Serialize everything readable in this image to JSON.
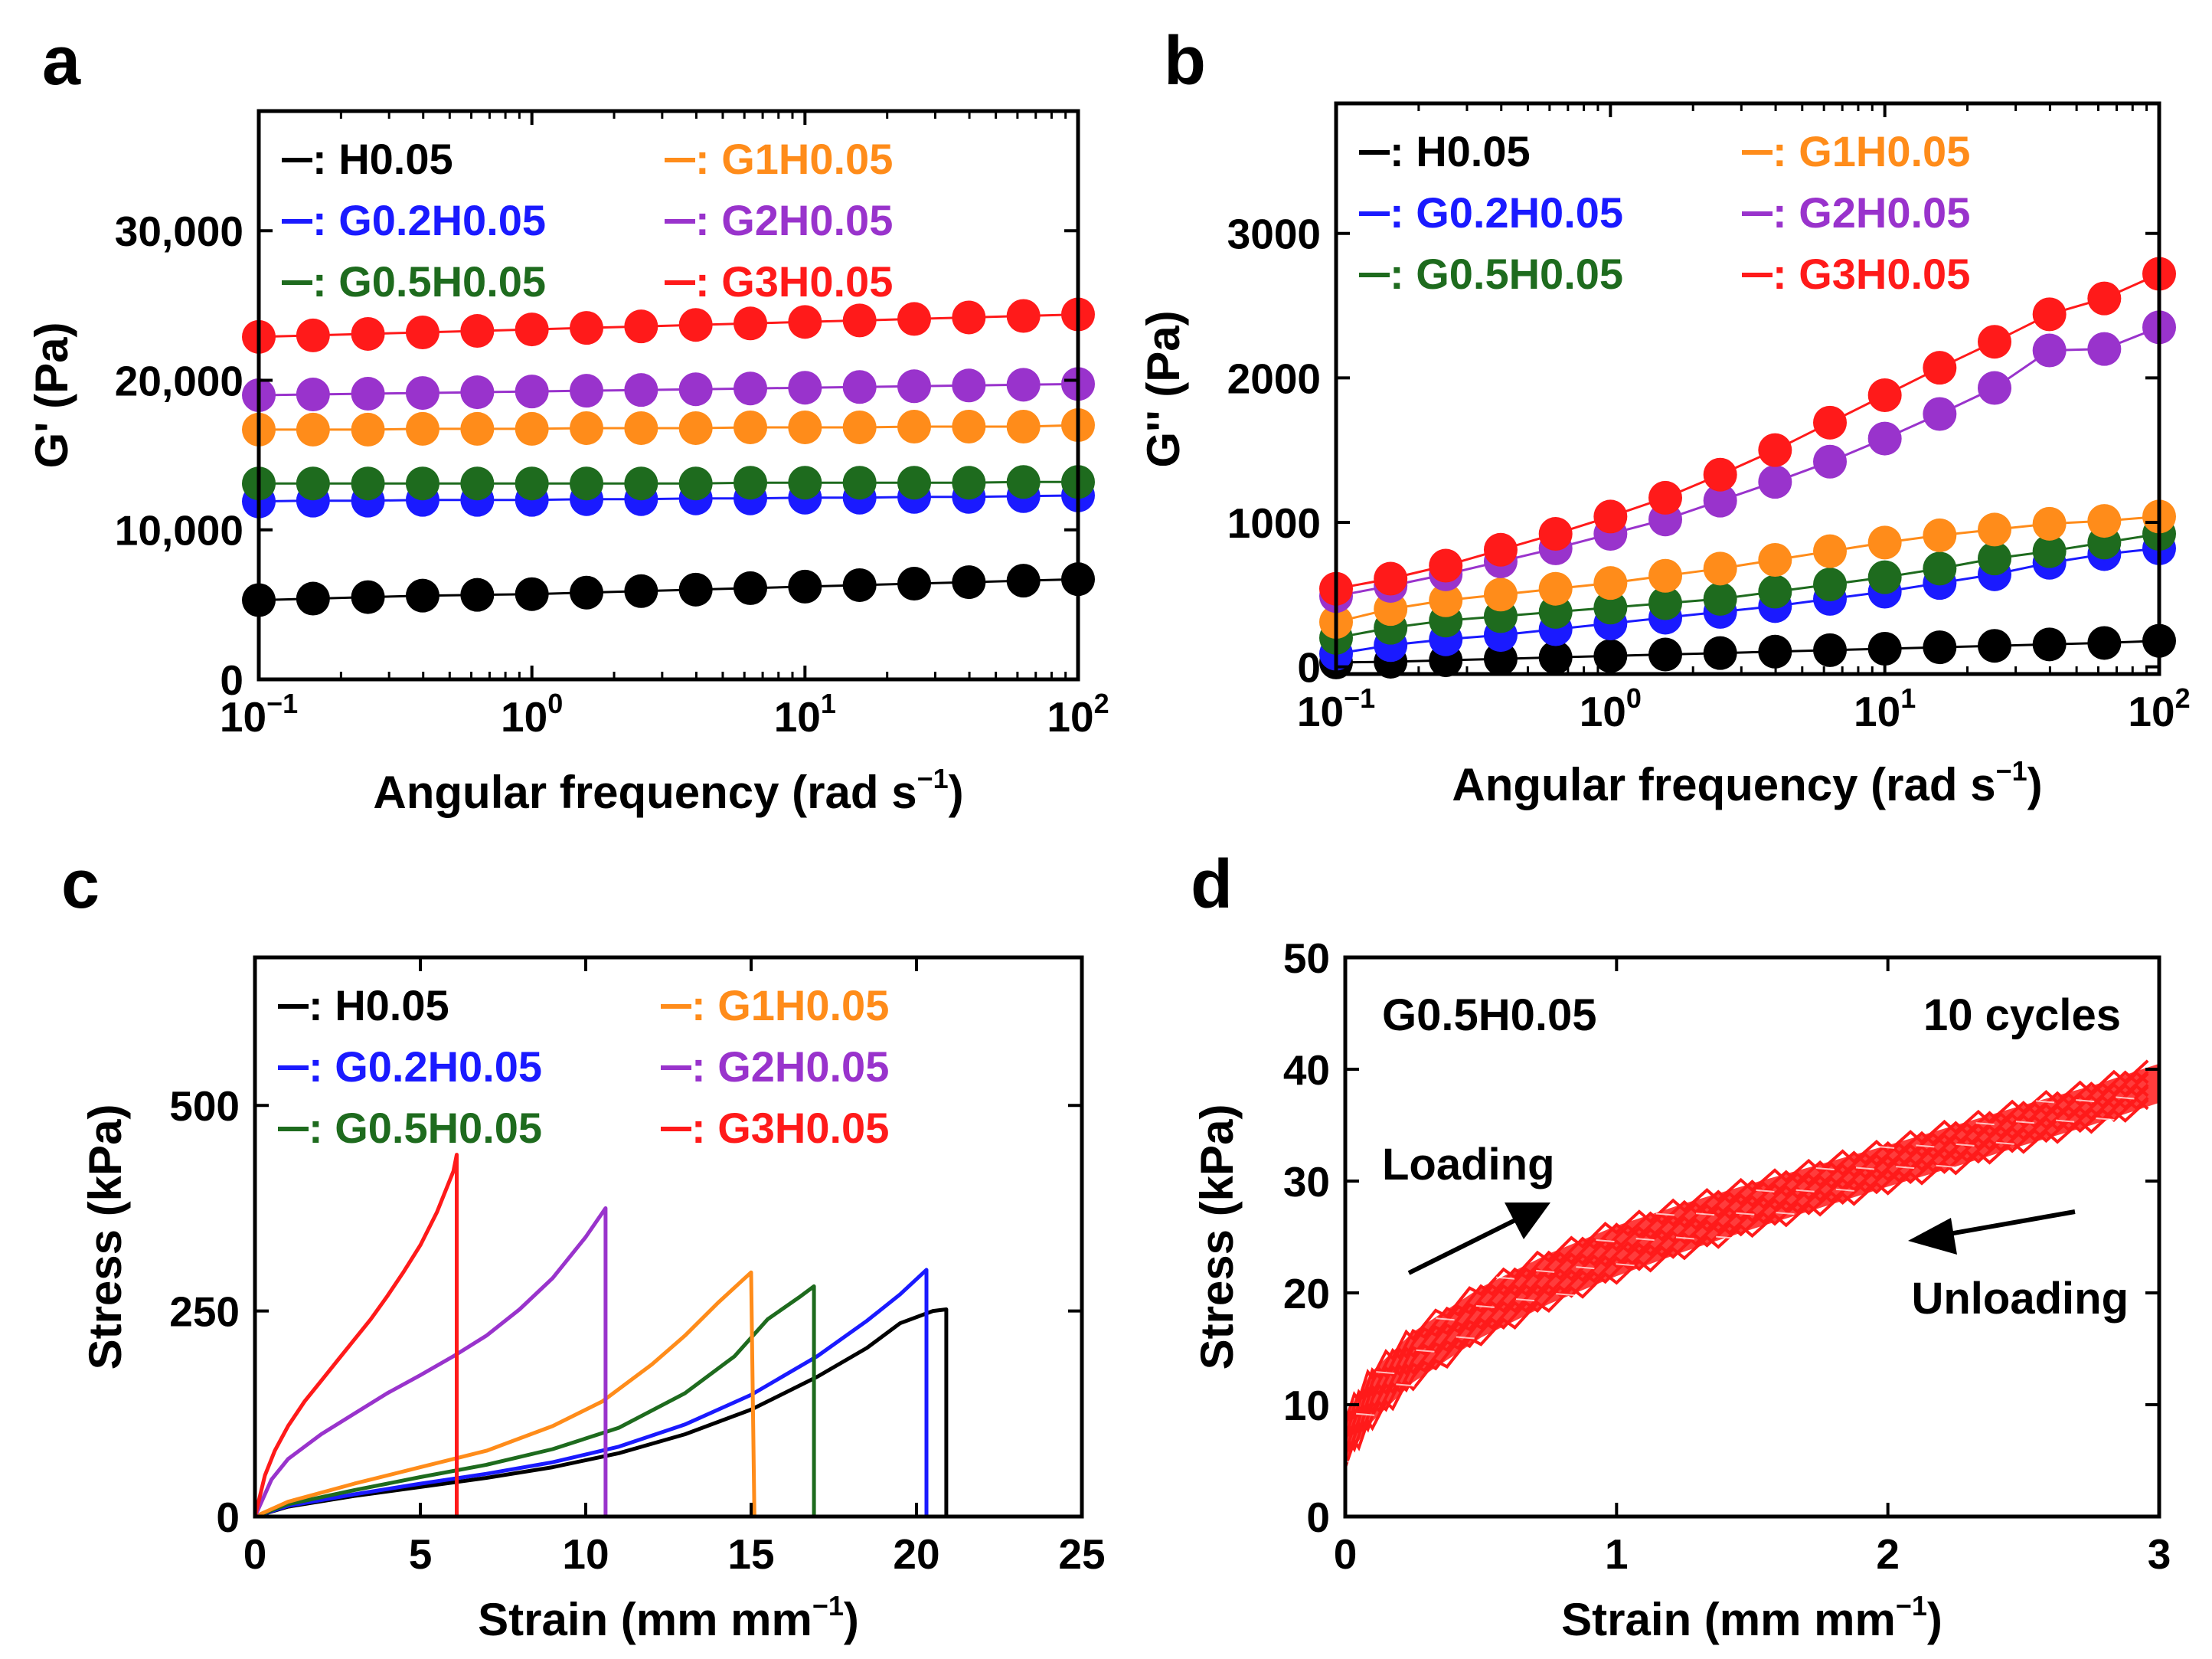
{
  "figure": {
    "panels": [
      {
        "letter": "a"
      },
      {
        "letter": "b"
      },
      {
        "letter": "c"
      },
      {
        "letter": "d"
      }
    ]
  },
  "legend_series": [
    {
      "name": ": H0.05",
      "color": "#000000"
    },
    {
      "name": ": G0.2H0.05",
      "color": "#1a1aff"
    },
    {
      "name": ": G0.5H0.05",
      "color": "#1e6b1e"
    },
    {
      "name": ": G1H0.05",
      "color": "#ff8c1a"
    },
    {
      "name": ": G2H0.05",
      "color": "#9933cc"
    },
    {
      "name": ": G3H0.05",
      "color": "#ff1a1a"
    }
  ],
  "chart_data": [
    {
      "panel": "a",
      "type": "scatter",
      "xscale": "log",
      "xlabel": "Angular frequency (rad s",
      "xlabel_sup": "−1",
      "xlabel_end": ")",
      "ylabel": "G' (Pa)",
      "xlim": [
        0.1,
        100
      ],
      "ylim": [
        0,
        38000
      ],
      "xticks": [
        0.1,
        1,
        10,
        100
      ],
      "xtick_labels": [
        {
          "base": "10",
          "exp": "−1"
        },
        {
          "base": "10",
          "exp": "0"
        },
        {
          "base": "10",
          "exp": "1"
        },
        {
          "base": "10",
          "exp": "2"
        }
      ],
      "yticks": [
        0,
        10000,
        20000,
        30000
      ],
      "ytick_labels": [
        "0",
        "10,000",
        "20,000",
        "30,000"
      ],
      "x": [
        0.1,
        0.158,
        0.251,
        0.398,
        0.631,
        1.0,
        1.585,
        2.512,
        3.981,
        6.31,
        10.0,
        15.85,
        25.12,
        39.81,
        63.1,
        100
      ],
      "series": [
        {
          "name": "H0.05",
          "values": [
            5300,
            5400,
            5500,
            5600,
            5650,
            5700,
            5800,
            5900,
            6000,
            6100,
            6200,
            6300,
            6400,
            6500,
            6600,
            6700
          ]
        },
        {
          "name": "G0.2H0.05",
          "values": [
            11900,
            11950,
            11950,
            12000,
            12000,
            12000,
            12050,
            12050,
            12100,
            12100,
            12150,
            12150,
            12200,
            12200,
            12250,
            12300
          ]
        },
        {
          "name": "G0.5H0.05",
          "values": [
            13100,
            13100,
            13100,
            13100,
            13100,
            13100,
            13100,
            13100,
            13100,
            13150,
            13150,
            13150,
            13150,
            13150,
            13200,
            13200
          ]
        },
        {
          "name": "G1H0.05",
          "values": [
            16700,
            16700,
            16700,
            16750,
            16750,
            16750,
            16800,
            16800,
            16800,
            16850,
            16850,
            16850,
            16900,
            16900,
            16900,
            17000
          ]
        },
        {
          "name": "G2H0.05",
          "values": [
            19000,
            19050,
            19100,
            19150,
            19200,
            19250,
            19300,
            19350,
            19400,
            19450,
            19500,
            19550,
            19600,
            19650,
            19700,
            19750
          ]
        },
        {
          "name": "G3H0.05",
          "values": [
            22900,
            23000,
            23100,
            23200,
            23300,
            23400,
            23500,
            23600,
            23700,
            23800,
            23900,
            24000,
            24100,
            24200,
            24300,
            24400
          ]
        }
      ]
    },
    {
      "panel": "b",
      "type": "scatter",
      "xscale": "log",
      "xlabel": "Angular frequency (rad s",
      "xlabel_sup": "−1",
      "xlabel_end": ")",
      "ylabel": "G'' (Pa)",
      "xlim": [
        0.1,
        100
      ],
      "ylim": [
        -50,
        3900
      ],
      "xticks": [
        0.1,
        1,
        10,
        100
      ],
      "xtick_labels": [
        {
          "base": "10",
          "exp": "−1"
        },
        {
          "base": "10",
          "exp": "0"
        },
        {
          "base": "10",
          "exp": "1"
        },
        {
          "base": "10",
          "exp": "2"
        }
      ],
      "yticks": [
        0,
        1000,
        2000,
        3000
      ],
      "ytick_labels": [
        "0",
        "1000",
        "2000",
        "3000"
      ],
      "x": [
        0.1,
        0.158,
        0.251,
        0.398,
        0.631,
        1.0,
        1.585,
        2.512,
        3.981,
        6.31,
        10.0,
        15.85,
        25.12,
        39.81,
        63.1,
        100
      ],
      "series": [
        {
          "name": "H0.05",
          "values": [
            30,
            35,
            45,
            55,
            65,
            75,
            85,
            95,
            105,
            115,
            125,
            135,
            145,
            155,
            165,
            180
          ]
        },
        {
          "name": "G0.2H0.05",
          "values": [
            90,
            150,
            190,
            220,
            260,
            300,
            340,
            380,
            420,
            470,
            520,
            580,
            640,
            720,
            780,
            820
          ]
        },
        {
          "name": "G0.5H0.05",
          "values": [
            200,
            270,
            320,
            350,
            380,
            410,
            440,
            470,
            520,
            570,
            620,
            680,
            750,
            800,
            860,
            920
          ]
        },
        {
          "name": "G1H0.05",
          "values": [
            310,
            400,
            460,
            500,
            540,
            580,
            630,
            680,
            740,
            800,
            860,
            910,
            950,
            990,
            1010,
            1040
          ]
        },
        {
          "name": "G2H0.05",
          "values": [
            490,
            560,
            640,
            730,
            820,
            920,
            1020,
            1150,
            1280,
            1420,
            1580,
            1750,
            1930,
            2190,
            2200,
            2350
          ]
        },
        {
          "name": "G3H0.05",
          "values": [
            540,
            610,
            700,
            810,
            920,
            1040,
            1170,
            1330,
            1500,
            1690,
            1880,
            2070,
            2250,
            2440,
            2550,
            2720
          ]
        }
      ]
    },
    {
      "panel": "c",
      "type": "line",
      "xlabel": "Strain (mm mm",
      "xlabel_sup": "−1",
      "xlabel_end": ")",
      "ylabel": "Stress (kPa)",
      "xlim": [
        0,
        25
      ],
      "ylim": [
        0,
        680
      ],
      "xticks": [
        0,
        5,
        10,
        15,
        20,
        25
      ],
      "xtick_labels": [
        "0",
        "5",
        "10",
        "15",
        "20",
        "25"
      ],
      "yticks": [
        0,
        250,
        500
      ],
      "ytick_labels": [
        "0",
        "250",
        "500"
      ],
      "series": [
        {
          "name": "H0.05",
          "x": [
            0,
            1,
            3,
            5,
            7,
            9,
            11,
            13,
            15,
            17,
            18.5,
            19.5,
            20.5,
            20.9,
            20.9
          ],
          "y": [
            0,
            12,
            25,
            36,
            47,
            60,
            77,
            100,
            130,
            170,
            205,
            235,
            250,
            252,
            0
          ]
        },
        {
          "name": "G0.2H0.05",
          "x": [
            0,
            1,
            3,
            5,
            7,
            9,
            11,
            13,
            15,
            17,
            18.5,
            19.5,
            20.3,
            20.3
          ],
          "y": [
            0,
            13,
            27,
            40,
            52,
            66,
            85,
            112,
            148,
            195,
            238,
            270,
            300,
            0
          ]
        },
        {
          "name": "G0.5H0.05",
          "x": [
            0,
            1,
            3,
            5,
            7,
            9,
            11,
            13,
            14.5,
            15.5,
            16.5,
            16.9,
            16.9
          ],
          "y": [
            0,
            15,
            32,
            48,
            63,
            82,
            108,
            150,
            195,
            240,
            268,
            280,
            0
          ]
        },
        {
          "name": "G1H0.05",
          "x": [
            0,
            1,
            3,
            5,
            7,
            9,
            10.5,
            12,
            13,
            14,
            15,
            15.1
          ],
          "y": [
            0,
            18,
            40,
            60,
            80,
            110,
            140,
            185,
            220,
            260,
            297,
            0
          ]
        },
        {
          "name": "G2H0.05",
          "x": [
            0,
            0.5,
            1,
            2,
            3,
            4,
            5,
            6,
            7,
            8,
            9,
            10,
            10.6,
            10.6
          ],
          "y": [
            0,
            45,
            70,
            100,
            125,
            150,
            172,
            195,
            220,
            252,
            290,
            340,
            375,
            0
          ]
        },
        {
          "name": "G3H0.05",
          "x": [
            0,
            0.3,
            0.6,
            1,
            1.5,
            2,
            2.5,
            3,
            3.5,
            4,
            4.5,
            5,
            5.5,
            6,
            6.1,
            6.1
          ],
          "y": [
            0,
            50,
            80,
            110,
            140,
            165,
            190,
            215,
            240,
            268,
            298,
            330,
            370,
            420,
            440,
            0
          ]
        }
      ]
    },
    {
      "panel": "d",
      "type": "line",
      "xlabel": "Strain (mm mm",
      "xlabel_sup": "−1",
      "xlabel_end": ")",
      "ylabel": "Stress (kPa)",
      "xlim": [
        0,
        3
      ],
      "ylim": [
        0,
        50
      ],
      "xticks": [
        0,
        1,
        2,
        3
      ],
      "xtick_labels": [
        "0",
        "1",
        "2",
        "3"
      ],
      "yticks": [
        0,
        10,
        20,
        30,
        40,
        50
      ],
      "ytick_labels": [
        "0",
        "10",
        "20",
        "30",
        "40",
        "50"
      ],
      "sample_label": "G0.5H0.05",
      "cycles_label": "10 cycles",
      "loading_label": "Loading",
      "unloading_label": "Unloading",
      "color": "#ff1a1a",
      "cycle_count": 10,
      "band": {
        "x": [
          0,
          0.1,
          0.25,
          0.5,
          0.75,
          1.0,
          1.25,
          1.5,
          1.75,
          2.0,
          2.25,
          2.5,
          2.75,
          3.0
        ],
        "loading_y": [
          9,
          13,
          16.5,
          20.5,
          23.5,
          26,
          28,
          29.8,
          31.5,
          33.2,
          35,
          36.8,
          38.5,
          40.5
        ],
        "unloading_y": [
          5,
          8.5,
          12,
          16,
          19,
          21.5,
          23.7,
          25.7,
          27.6,
          29.5,
          31.3,
          33.2,
          35,
          37
        ]
      }
    }
  ]
}
